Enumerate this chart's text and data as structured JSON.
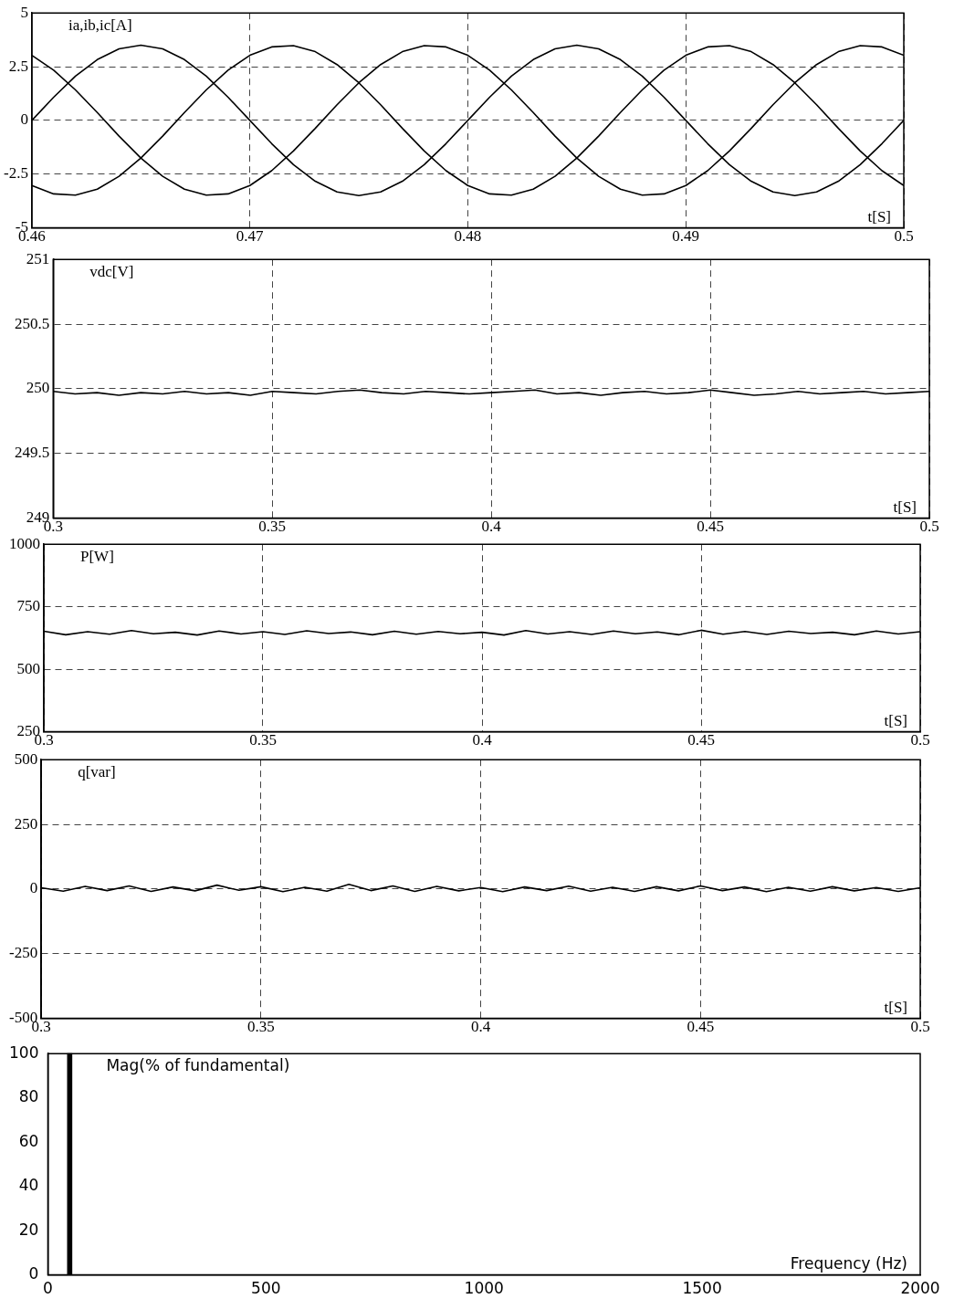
{
  "chart_data": [
    {
      "type": "line",
      "title": "ia,ib,ic[A]",
      "xlabel": "t[S]",
      "x": [
        0.46,
        0.461,
        0.462,
        0.463,
        0.464,
        0.465,
        0.466,
        0.467,
        0.468,
        0.469,
        0.47,
        0.471,
        0.472,
        0.473,
        0.474,
        0.475,
        0.476,
        0.477,
        0.478,
        0.479,
        0.48,
        0.481,
        0.482,
        0.483,
        0.484,
        0.485,
        0.486,
        0.487,
        0.488,
        0.489,
        0.49,
        0.491,
        0.492,
        0.493,
        0.494,
        0.495,
        0.496,
        0.497,
        0.498,
        0.499,
        0.5
      ],
      "series": [
        {
          "color": "#000000",
          "values": [
            0,
            1.08,
            2.06,
            2.83,
            3.33,
            3.5,
            3.33,
            2.83,
            2.06,
            1.08,
            0,
            -1.08,
            -2.06,
            -2.83,
            -3.33,
            -3.5,
            -3.33,
            -2.83,
            -2.06,
            -1.08,
            0,
            1.08,
            2.06,
            2.83,
            3.33,
            3.5,
            3.33,
            2.83,
            2.06,
            1.08,
            0,
            -1.08,
            -2.06,
            -2.83,
            -3.33,
            -3.5,
            -3.33,
            -2.83,
            -2.06,
            -1.08,
            0
          ]
        },
        {
          "color": "#000000",
          "values": [
            3.03,
            2.34,
            1.42,
            0.37,
            -0.73,
            -1.75,
            -2.6,
            -3.2,
            -3.48,
            -3.42,
            -3.03,
            -2.34,
            -1.42,
            -0.37,
            0.73,
            1.75,
            2.6,
            3.2,
            3.48,
            3.42,
            3.03,
            2.34,
            1.42,
            0.37,
            -0.73,
            -1.75,
            -2.6,
            -3.2,
            -3.48,
            -3.42,
            -3.03,
            -2.34,
            -1.42,
            -0.37,
            0.73,
            1.75,
            2.6,
            3.2,
            3.48,
            3.42,
            3.03
          ]
        },
        {
          "color": "#000000",
          "values": [
            -3.03,
            -3.42,
            -3.48,
            -3.2,
            -2.6,
            -1.75,
            -0.73,
            0.37,
            1.42,
            2.34,
            3.03,
            3.42,
            3.48,
            3.2,
            2.6,
            1.75,
            0.73,
            -0.37,
            -1.42,
            -2.34,
            -3.03,
            -3.42,
            -3.48,
            -3.2,
            -2.6,
            -1.75,
            -0.73,
            0.37,
            1.42,
            2.34,
            3.03,
            3.42,
            3.48,
            3.2,
            2.6,
            1.75,
            0.73,
            -0.37,
            -1.42,
            -2.34,
            -3.03
          ]
        }
      ],
      "xlim": [
        0.46,
        0.5
      ],
      "xticks": [
        0.46,
        0.47,
        0.48,
        0.49,
        0.5
      ],
      "ylim": [
        -5,
        5
      ],
      "yticks": [
        -5,
        -2.5,
        0,
        2.5,
        5
      ],
      "grid": true,
      "line_style": "solid"
    },
    {
      "type": "line",
      "title": "vdc[V]",
      "xlabel": "t[S]",
      "x": [
        0.3,
        0.305,
        0.31,
        0.315,
        0.32,
        0.325,
        0.33,
        0.335,
        0.34,
        0.345,
        0.35,
        0.355,
        0.36,
        0.365,
        0.37,
        0.375,
        0.38,
        0.385,
        0.39,
        0.395,
        0.4,
        0.405,
        0.41,
        0.415,
        0.42,
        0.425,
        0.43,
        0.435,
        0.44,
        0.445,
        0.45,
        0.455,
        0.46,
        0.465,
        0.47,
        0.475,
        0.48,
        0.485,
        0.49,
        0.495,
        0.5
      ],
      "series": [
        {
          "color": "#000000",
          "values": [
            249.98,
            249.96,
            249.97,
            249.95,
            249.97,
            249.96,
            249.98,
            249.96,
            249.97,
            249.95,
            249.98,
            249.97,
            249.96,
            249.98,
            249.99,
            249.97,
            249.96,
            249.98,
            249.97,
            249.96,
            249.97,
            249.98,
            249.99,
            249.96,
            249.97,
            249.95,
            249.97,
            249.98,
            249.96,
            249.97,
            249.99,
            249.97,
            249.95,
            249.96,
            249.98,
            249.96,
            249.97,
            249.98,
            249.96,
            249.97,
            249.98
          ]
        }
      ],
      "xlim": [
        0.3,
        0.5
      ],
      "xticks": [
        0.3,
        0.35,
        0.4,
        0.45,
        0.5
      ],
      "ylim": [
        249,
        251
      ],
      "yticks": [
        249,
        249.5,
        250,
        250.5,
        251
      ],
      "grid": true,
      "line_style": "solid"
    },
    {
      "type": "line",
      "title": "P[W]",
      "xlabel": "t[S]",
      "x": [
        0.3,
        0.305,
        0.31,
        0.315,
        0.32,
        0.325,
        0.33,
        0.335,
        0.34,
        0.345,
        0.35,
        0.355,
        0.36,
        0.365,
        0.37,
        0.375,
        0.38,
        0.385,
        0.39,
        0.395,
        0.4,
        0.405,
        0.41,
        0.415,
        0.42,
        0.425,
        0.43,
        0.435,
        0.44,
        0.445,
        0.45,
        0.455,
        0.46,
        0.465,
        0.47,
        0.475,
        0.48,
        0.485,
        0.49,
        0.495,
        0.5
      ],
      "series": [
        {
          "color": "#000000",
          "values": [
            652,
            638,
            650,
            640,
            655,
            642,
            648,
            637,
            653,
            641,
            650,
            639,
            654,
            643,
            649,
            638,
            652,
            640,
            651,
            642,
            648,
            637,
            655,
            641,
            650,
            639,
            653,
            642,
            649,
            638,
            656,
            640,
            651,
            639,
            652,
            643,
            648,
            638,
            653,
            641,
            650
          ]
        }
      ],
      "xlim": [
        0.3,
        0.5
      ],
      "xticks": [
        0.3,
        0.35,
        0.4,
        0.45,
        0.5
      ],
      "ylim": [
        250,
        1000
      ],
      "yticks": [
        250,
        500,
        750,
        1000
      ],
      "grid": true,
      "line_style": "solid"
    },
    {
      "type": "line",
      "title": "q[var]",
      "xlabel": "t[S]",
      "x": [
        0.3,
        0.305,
        0.31,
        0.315,
        0.32,
        0.325,
        0.33,
        0.335,
        0.34,
        0.345,
        0.35,
        0.355,
        0.36,
        0.365,
        0.37,
        0.375,
        0.38,
        0.385,
        0.39,
        0.395,
        0.4,
        0.405,
        0.41,
        0.415,
        0.42,
        0.425,
        0.43,
        0.435,
        0.44,
        0.445,
        0.45,
        0.455,
        0.46,
        0.465,
        0.47,
        0.475,
        0.48,
        0.485,
        0.49,
        0.495,
        0.5
      ],
      "series": [
        {
          "color": "#000000",
          "values": [
            5,
            -8,
            10,
            -6,
            12,
            -9,
            8,
            -7,
            15,
            -5,
            9,
            -10,
            7,
            -8,
            18,
            -6,
            12,
            -9,
            10,
            -7,
            6,
            -10,
            8,
            -6,
            11,
            -8,
            7,
            -9,
            9,
            -7,
            12,
            -6,
            8,
            -10,
            7,
            -8,
            9,
            -7,
            6,
            -9,
            5
          ]
        }
      ],
      "xlim": [
        0.3,
        0.5
      ],
      "xticks": [
        0.3,
        0.35,
        0.4,
        0.45,
        0.5
      ],
      "ylim": [
        -500,
        500
      ],
      "yticks": [
        -500,
        -250,
        0,
        250,
        500
      ],
      "grid": true,
      "line_style": "solid"
    },
    {
      "type": "bar",
      "title": "Mag(% of fundamental)",
      "xlabel": "Frequency (Hz)",
      "x": [
        50
      ],
      "values": [
        100
      ],
      "color": "#000000",
      "xlim": [
        0,
        2000
      ],
      "xticks": [
        0,
        500,
        1000,
        1500,
        2000
      ],
      "ylim": [
        0,
        100
      ],
      "yticks": [
        0,
        20,
        40,
        60,
        80,
        100
      ],
      "grid": false
    }
  ]
}
